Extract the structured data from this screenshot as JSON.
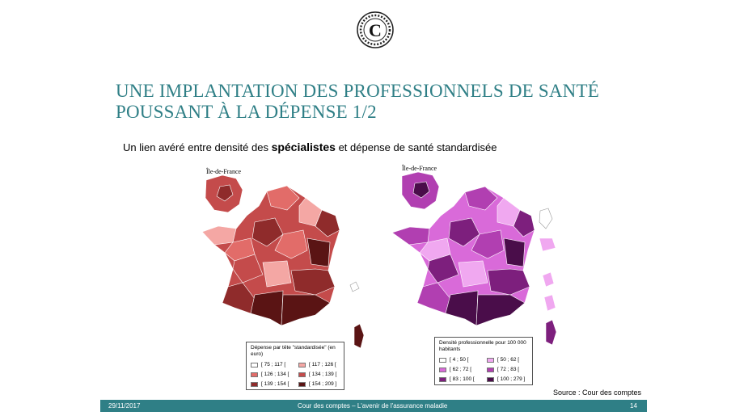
{
  "header": {
    "logo_text": "C",
    "title": "UNE IMPLANTATION  DES PROFESSIONNELS DE SANTÉ POUSSANT À LA DÉPENSE 1/2"
  },
  "subtitle": {
    "part1": "Un lien avéré entre densité des ",
    "bold": "spécialistes",
    "part2": " et dépense de santé standardisée"
  },
  "map_left": {
    "inset_label": "Île-de-France",
    "legend_title": "Dépense par tête \"standardisée\" (en euro)",
    "legend": [
      {
        "label": "[ 75 ; 117 [",
        "color": "#ffffff"
      },
      {
        "label": "[ 117 ; 126 [",
        "color": "#f4a7a4"
      },
      {
        "label": "[ 126 ; 134 [",
        "color": "#e26c69"
      },
      {
        "label": "[ 134 ; 139 [",
        "color": "#c44b4b"
      },
      {
        "label": "[ 139 ; 154 [",
        "color": "#8f2b2b"
      },
      {
        "label": "[ 154 ; 209 ]",
        "color": "#5a1414"
      }
    ]
  },
  "map_right": {
    "inset_label": "Île-de-France",
    "legend_title": "Densité professionnelle pour 100 000 habitants",
    "legend": [
      {
        "label": "[ 4 ; 50 [",
        "color": "#ffffff"
      },
      {
        "label": "[ 50 ; 62 [",
        "color": "#f0a8f0"
      },
      {
        "label": "[ 62 ; 72 [",
        "color": "#d96ad9"
      },
      {
        "label": "[ 72 ; 83 [",
        "color": "#b13fb1"
      },
      {
        "label": "[ 83 ; 100 [",
        "color": "#7d1f7d"
      },
      {
        "label": "[ 100 ; 279 ]",
        "color": "#4a0d4a"
      }
    ]
  },
  "source": "Source : Cour des comptes",
  "footer": {
    "date": "29/11/2017",
    "center": "Cour des comptes – L'avenir de l'assurance maladie",
    "page": "14"
  }
}
